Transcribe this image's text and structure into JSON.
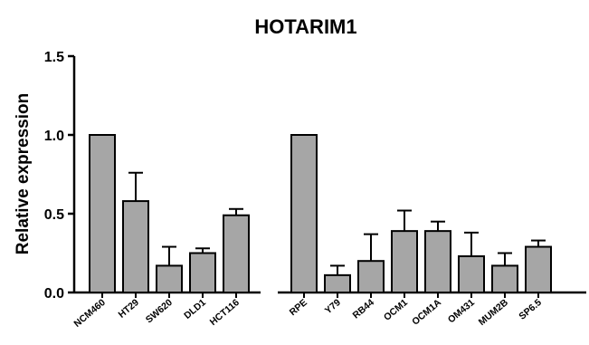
{
  "chart_data": {
    "type": "bar",
    "title": "HOTARIM1",
    "xlabel": "",
    "ylabel": "Relative expression",
    "ylim": [
      0,
      1.5
    ],
    "yticks": [
      "0.0",
      "0.5",
      "1.0",
      "1.5"
    ],
    "grid": false,
    "legend": "none",
    "bar_color": "#a6a6a6",
    "groups": [
      {
        "categories": [
          "NCM460",
          "HT29",
          "SW620",
          "DLD1",
          "HCT116"
        ],
        "values": [
          1.0,
          0.58,
          0.17,
          0.25,
          0.49
        ],
        "errors": [
          0.0,
          0.18,
          0.12,
          0.03,
          0.04
        ]
      },
      {
        "categories": [
          "RPE",
          "Y79",
          "RB44",
          "OCM1",
          "OCM1A",
          "OM431",
          "MUM2B",
          "SP6.5"
        ],
        "values": [
          1.0,
          0.11,
          0.2,
          0.39,
          0.39,
          0.23,
          0.17,
          0.29
        ],
        "errors": [
          0.0,
          0.06,
          0.17,
          0.13,
          0.06,
          0.15,
          0.08,
          0.04
        ]
      }
    ]
  }
}
